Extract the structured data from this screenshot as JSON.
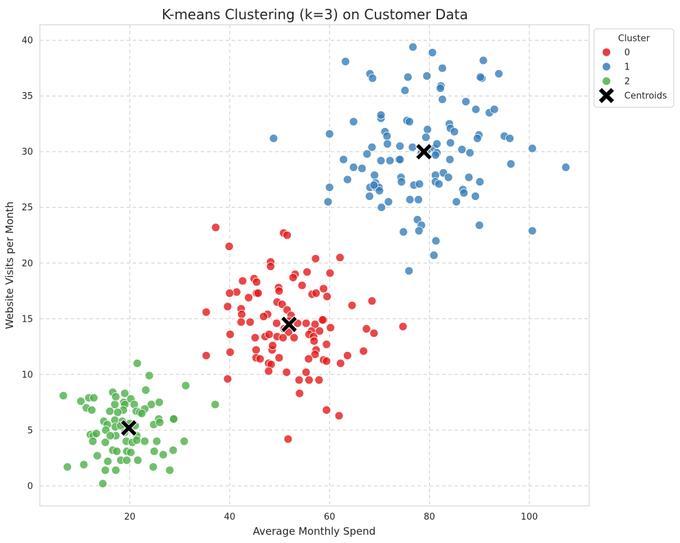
{
  "chart_data": {
    "type": "scatter",
    "title": "K-means Clustering (k=3) on Customer Data",
    "xlabel": "Average Monthly Spend",
    "ylabel": "Website Visits per Month",
    "xlim": [
      2,
      112
    ],
    "ylim": [
      -1.8,
      41.4
    ],
    "xticks": [
      20,
      40,
      60,
      80,
      100
    ],
    "yticks": [
      0,
      5,
      10,
      15,
      20,
      25,
      30,
      35,
      40
    ],
    "grid": true,
    "legend": {
      "title": "Cluster",
      "placement": "outside upper right",
      "entries": [
        "0",
        "1",
        "2",
        "Centroids"
      ]
    },
    "colors": {
      "0": "#e41a1c",
      "1": "#377eb8",
      "2": "#4daf4a",
      "Centroids": "#000000"
    },
    "series": [
      {
        "name": "0",
        "points": [
          [
            37.2,
            23.2
          ],
          [
            39.9,
            21.5
          ],
          [
            50.8,
            22.7
          ],
          [
            51.5,
            22.5
          ],
          [
            57.2,
            20.4
          ],
          [
            62.1,
            20.5
          ],
          [
            48.2,
            20.1
          ],
          [
            48.2,
            19.7
          ],
          [
            53.1,
            19.0
          ],
          [
            55.5,
            19.2
          ],
          [
            60.1,
            19.1
          ],
          [
            44.9,
            18.6
          ],
          [
            42.6,
            18.4
          ],
          [
            45.4,
            18.3
          ],
          [
            52.7,
            18.7
          ],
          [
            49.8,
            17.8
          ],
          [
            49.9,
            17.5
          ],
          [
            54.5,
            18.0
          ],
          [
            58.8,
            17.7
          ],
          [
            41.4,
            17.4
          ],
          [
            45.4,
            17.3
          ],
          [
            45.7,
            17.3
          ],
          [
            40.0,
            17.3
          ],
          [
            43.8,
            16.9
          ],
          [
            56.5,
            17.2
          ],
          [
            57.3,
            17.3
          ],
          [
            59.5,
            17.0
          ],
          [
            68.5,
            16.6
          ],
          [
            64.5,
            16.2
          ],
          [
            39.6,
            16.1
          ],
          [
            42.3,
            15.9
          ],
          [
            49.5,
            16.5
          ],
          [
            50.5,
            16.3
          ],
          [
            51.5,
            15.8
          ],
          [
            47.6,
            15.4
          ],
          [
            35.3,
            15.6
          ],
          [
            42.4,
            15.4
          ],
          [
            46.8,
            15.2
          ],
          [
            52.3,
            15.3
          ],
          [
            42.3,
            14.7
          ],
          [
            44.1,
            14.7
          ],
          [
            49.4,
            14.6
          ],
          [
            51.9,
            14.8
          ],
          [
            53.6,
            14.6
          ],
          [
            55.3,
            14.6
          ],
          [
            57.1,
            14.5
          ],
          [
            58.8,
            14.9
          ],
          [
            58.6,
            14.9
          ],
          [
            60.2,
            14.2
          ],
          [
            56.4,
            13.9
          ],
          [
            58.0,
            13.9
          ],
          [
            50.9,
            14.1
          ],
          [
            51.8,
            13.8
          ],
          [
            49.5,
            13.4
          ],
          [
            45.1,
            13.3
          ],
          [
            47.1,
            13.4
          ],
          [
            47.9,
            13.6
          ],
          [
            50.7,
            13.3
          ],
          [
            52.9,
            13.3
          ],
          [
            55.9,
            13.6
          ],
          [
            56.8,
            13.4
          ],
          [
            56.9,
            13.0
          ],
          [
            59.4,
            12.7
          ],
          [
            57.3,
            12.2
          ],
          [
            57.1,
            11.8
          ],
          [
            55.8,
            11.4
          ],
          [
            58.8,
            11.3
          ],
          [
            59.4,
            11.2
          ],
          [
            40.1,
            13.6
          ],
          [
            40.1,
            12.0
          ],
          [
            67.4,
            14.1
          ],
          [
            68.9,
            13.7
          ],
          [
            74.7,
            14.3
          ],
          [
            66.8,
            12.1
          ],
          [
            63.6,
            11.7
          ],
          [
            62.2,
            11.0
          ],
          [
            35.3,
            11.7
          ],
          [
            45.3,
            12.2
          ],
          [
            45.3,
            11.5
          ],
          [
            46.1,
            11.4
          ],
          [
            47.8,
            11.0
          ],
          [
            48.3,
            10.9
          ],
          [
            48.5,
            12.2
          ],
          [
            48.6,
            12.6
          ],
          [
            49.9,
            11.5
          ],
          [
            47.8,
            10.3
          ],
          [
            51.4,
            10.2
          ],
          [
            53.9,
            9.5
          ],
          [
            55.9,
            9.5
          ],
          [
            57.9,
            9.5
          ],
          [
            55.3,
            10.2
          ],
          [
            39.6,
            9.6
          ],
          [
            54.0,
            8.3
          ],
          [
            59.4,
            6.8
          ],
          [
            61.9,
            6.3
          ],
          [
            51.7,
            4.2
          ]
        ]
      },
      {
        "name": "1",
        "points": [
          [
            76.7,
            39.4
          ],
          [
            80.6,
            38.9
          ],
          [
            63.2,
            38.1
          ],
          [
            90.8,
            38.2
          ],
          [
            68.1,
            37.0
          ],
          [
            68.6,
            36.6
          ],
          [
            75.7,
            36.7
          ],
          [
            79.5,
            36.8
          ],
          [
            82.6,
            37.5
          ],
          [
            90.5,
            36.6
          ],
          [
            90.2,
            36.7
          ],
          [
            93.9,
            37.0
          ],
          [
            75.1,
            35.5
          ],
          [
            82.3,
            35.9
          ],
          [
            82.2,
            35.7
          ],
          [
            82.6,
            34.7
          ],
          [
            87.3,
            34.5
          ],
          [
            70.3,
            33.0
          ],
          [
            70.3,
            33.3
          ],
          [
            75.5,
            32.8
          ],
          [
            76.0,
            32.7
          ],
          [
            64.8,
            32.7
          ],
          [
            84.0,
            32.5
          ],
          [
            84.2,
            32.1
          ],
          [
            89.3,
            33.8
          ],
          [
            92.0,
            33.5
          ],
          [
            93.0,
            33.8
          ],
          [
            71.1,
            31.8
          ],
          [
            71.5,
            31.4
          ],
          [
            79.6,
            32.0
          ],
          [
            79.3,
            31.3
          ],
          [
            85.0,
            31.8
          ],
          [
            89.9,
            31.5
          ],
          [
            89.6,
            31.2
          ],
          [
            95.0,
            31.4
          ],
          [
            96.1,
            31.2
          ],
          [
            48.8,
            31.2
          ],
          [
            60.0,
            31.6
          ],
          [
            68.5,
            30.4
          ],
          [
            71.6,
            30.7
          ],
          [
            74.1,
            30.5
          ],
          [
            76.6,
            30.4
          ],
          [
            79.7,
            30.2
          ],
          [
            81.0,
            30.3
          ],
          [
            81.5,
            30.7
          ],
          [
            84.2,
            30.8
          ],
          [
            86.5,
            30.2
          ],
          [
            88.1,
            29.9
          ],
          [
            100.6,
            30.3
          ],
          [
            62.8,
            29.3
          ],
          [
            67.5,
            29.8
          ],
          [
            70.3,
            29.2
          ],
          [
            72.1,
            29.2
          ],
          [
            73.9,
            29.3
          ],
          [
            74.1,
            29.3
          ],
          [
            78.4,
            29.9
          ],
          [
            81.5,
            29.9
          ],
          [
            81.2,
            29.7
          ],
          [
            84.1,
            29.3
          ],
          [
            96.3,
            28.9
          ],
          [
            107.3,
            28.6
          ],
          [
            64.8,
            28.6
          ],
          [
            66.5,
            28.5
          ],
          [
            69.0,
            27.9
          ],
          [
            74.3,
            27.7
          ],
          [
            74.4,
            27.3
          ],
          [
            76.9,
            27.0
          ],
          [
            78.0,
            27.1
          ],
          [
            81.2,
            27.9
          ],
          [
            82.8,
            28.1
          ],
          [
            83.8,
            27.7
          ],
          [
            81.2,
            27.3
          ],
          [
            81.9,
            27.1
          ],
          [
            87.9,
            27.7
          ],
          [
            86.7,
            26.6
          ],
          [
            86.9,
            26.3
          ],
          [
            90.1,
            27.3
          ],
          [
            63.6,
            27.5
          ],
          [
            60.0,
            26.8
          ],
          [
            68.1,
            26.8
          ],
          [
            69.2,
            27.2
          ],
          [
            69.3,
            26.8
          ],
          [
            69.9,
            26.8
          ],
          [
            70.0,
            26.5
          ],
          [
            68.9,
            27.0
          ],
          [
            68.0,
            26.0
          ],
          [
            59.7,
            25.5
          ],
          [
            71.8,
            25.5
          ],
          [
            70.4,
            25.0
          ],
          [
            76.1,
            25.7
          ],
          [
            77.8,
            25.7
          ],
          [
            85.4,
            25.5
          ],
          [
            89.2,
            26.0
          ],
          [
            77.6,
            23.9
          ],
          [
            78.4,
            23.4
          ],
          [
            74.8,
            22.8
          ],
          [
            77.9,
            22.9
          ],
          [
            90.0,
            23.4
          ],
          [
            100.6,
            22.9
          ],
          [
            81.3,
            22.0
          ],
          [
            80.9,
            20.7
          ],
          [
            75.9,
            19.3
          ]
        ]
      },
      {
        "name": "2",
        "points": [
          [
            21.5,
            11.0
          ],
          [
            23.9,
            9.9
          ],
          [
            31.2,
            9.0
          ],
          [
            16.6,
            8.4
          ],
          [
            19.0,
            8.3
          ],
          [
            23.2,
            8.6
          ],
          [
            6.7,
            8.1
          ],
          [
            10.2,
            7.6
          ],
          [
            11.8,
            7.9
          ],
          [
            12.8,
            7.9
          ],
          [
            17.0,
            7.3
          ],
          [
            17.2,
            8.0
          ],
          [
            18.8,
            7.5
          ],
          [
            20.2,
            7.8
          ],
          [
            19.0,
            7.3
          ],
          [
            18.7,
            6.8
          ],
          [
            20.9,
            7.3
          ],
          [
            24.3,
            7.3
          ],
          [
            25.9,
            7.5
          ],
          [
            37.1,
            7.3
          ],
          [
            11.3,
            7.0
          ],
          [
            12.4,
            6.8
          ],
          [
            16.0,
            6.7
          ],
          [
            17.6,
            6.6
          ],
          [
            21.3,
            6.7
          ],
          [
            22.0,
            6.6
          ],
          [
            23.0,
            6.9
          ],
          [
            22.4,
            6.5
          ],
          [
            25.8,
            6.0
          ],
          [
            28.7,
            6.0
          ],
          [
            28.8,
            6.0
          ],
          [
            17.0,
            5.9
          ],
          [
            18.5,
            5.8
          ],
          [
            14.8,
            5.8
          ],
          [
            15.5,
            5.5
          ],
          [
            19.3,
            5.4
          ],
          [
            20.0,
            5.6
          ],
          [
            21.1,
            5.4
          ],
          [
            24.8,
            5.5
          ],
          [
            26.0,
            5.7
          ],
          [
            15.2,
            5.0
          ],
          [
            17.1,
            5.3
          ],
          [
            18.2,
            5.4
          ],
          [
            19.0,
            4.8
          ],
          [
            21.4,
            4.5
          ],
          [
            17.2,
            4.5
          ],
          [
            16.1,
            4.5
          ],
          [
            12.1,
            4.6
          ],
          [
            12.7,
            4.5
          ],
          [
            13.3,
            4.7
          ],
          [
            12.6,
            4.0
          ],
          [
            15.1,
            3.9
          ],
          [
            19.3,
            4.0
          ],
          [
            20.5,
            3.9
          ],
          [
            21.4,
            4.1
          ],
          [
            23.0,
            4.0
          ],
          [
            25.4,
            4.0
          ],
          [
            30.9,
            4.0
          ],
          [
            16.6,
            3.2
          ],
          [
            17.4,
            3.1
          ],
          [
            19.4,
            3.1
          ],
          [
            20.2,
            3.0
          ],
          [
            24.9,
            3.1
          ],
          [
            26.7,
            2.8
          ],
          [
            28.7,
            3.2
          ],
          [
            13.5,
            2.7
          ],
          [
            15.6,
            2.2
          ],
          [
            18.2,
            2.3
          ],
          [
            19.4,
            2.3
          ],
          [
            21.6,
            2.3
          ],
          [
            7.5,
            1.7
          ],
          [
            10.8,
            1.9
          ],
          [
            15.1,
            1.4
          ],
          [
            17.2,
            1.4
          ],
          [
            24.7,
            1.7
          ],
          [
            28.0,
            1.4
          ],
          [
            14.6,
            0.2
          ]
        ]
      }
    ],
    "centroids": [
      [
        51.9,
        14.5
      ],
      [
        78.9,
        30.0
      ],
      [
        19.8,
        5.2
      ]
    ]
  }
}
